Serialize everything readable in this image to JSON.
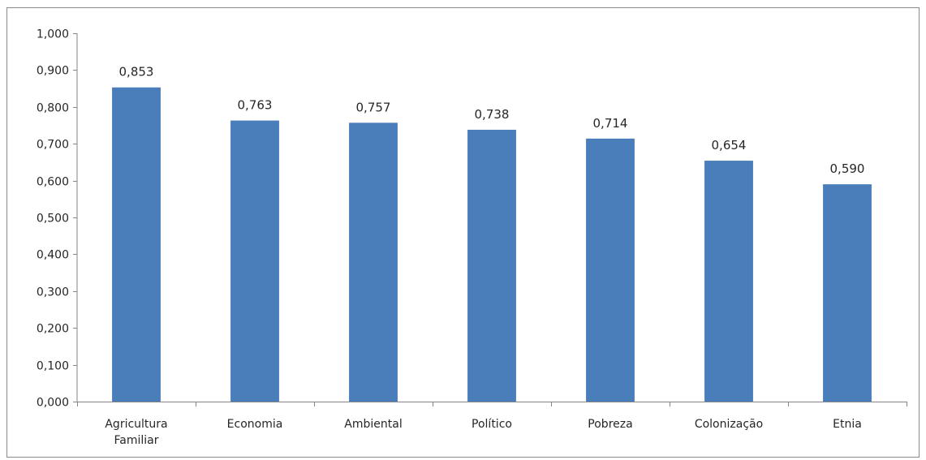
{
  "chart_data": {
    "type": "bar",
    "title": "",
    "xlabel": "",
    "ylabel": "",
    "categories": [
      [
        "Agricultura",
        "Familiar"
      ],
      [
        "Economia"
      ],
      [
        "Ambiental"
      ],
      [
        "Político"
      ],
      [
        "Pobreza"
      ],
      [
        "Colonização"
      ],
      [
        "Etnia"
      ]
    ],
    "values": [
      0.853,
      0.763,
      0.757,
      0.738,
      0.714,
      0.654,
      0.59
    ],
    "value_labels": [
      "0,853",
      "0,763",
      "0,757",
      "0,738",
      "0,714",
      "0,654",
      "0,590"
    ],
    "ylim": [
      0,
      1
    ],
    "yticks": [
      0,
      0.1,
      0.2,
      0.3,
      0.4,
      0.5,
      0.6,
      0.7,
      0.8,
      0.9,
      1.0
    ],
    "ytick_labels": [
      "0,000",
      "0,100",
      "0,200",
      "0,300",
      "0,400",
      "0,500",
      "0,600",
      "0,700",
      "0,800",
      "0,900",
      "1,000"
    ],
    "grid": false,
    "legend": "none",
    "bar_color": "#4a7ebb",
    "axis_color": "#868686",
    "text_color": "#262626"
  }
}
